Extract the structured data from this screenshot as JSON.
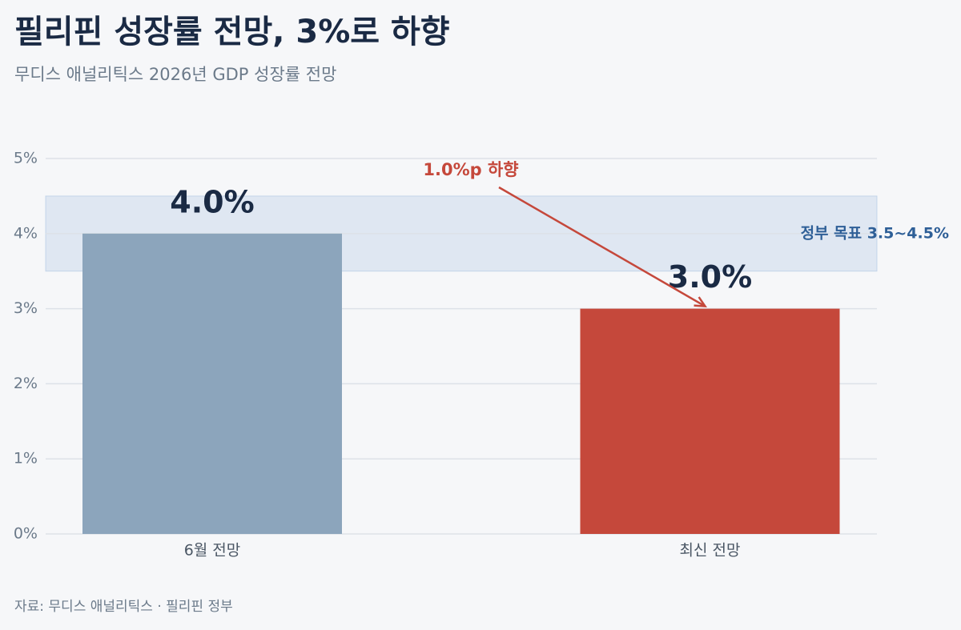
{
  "chart_data": {
    "type": "bar",
    "title": "필리핀 성장률 전망, 3%로 하향",
    "subtitle": "무디스 애널리틱스 2026년 GDP 성장률 전망",
    "categories": [
      "6월 전망",
      "최신 전망"
    ],
    "values": [
      4.0,
      3.0
    ],
    "value_labels": [
      "4.0%",
      "3.0%"
    ],
    "colors": [
      "#8ca5bc",
      "#c5483b"
    ],
    "ylim": [
      0,
      5
    ],
    "yticks": [
      {
        "value": 0,
        "label": "0%"
      },
      {
        "value": 1,
        "label": "1%"
      },
      {
        "value": 2,
        "label": "2%"
      },
      {
        "value": 3,
        "label": "3%"
      },
      {
        "value": 4,
        "label": "4%"
      },
      {
        "value": 5,
        "label": "5%"
      }
    ],
    "grid": true,
    "target_band": [
      3.5,
      4.5
    ],
    "target_label": "정부 목표 3.5~4.5%",
    "annotation": "1.0%p 하향",
    "source": "자료: 무디스 애널리틱스 · 필리핀 정부"
  }
}
